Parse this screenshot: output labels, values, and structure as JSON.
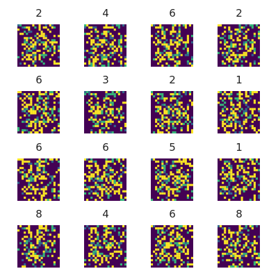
{
  "chart_data": {
    "type": "heatmap",
    "grid": {
      "rows": 4,
      "cols": 4
    },
    "colormap": {
      "low": "#440154",
      "mid_low": "#31688e",
      "mid_high": "#35b779",
      "high": "#fde725"
    },
    "pixel_grid_size": 20,
    "panels": [
      {
        "title": "2"
      },
      {
        "title": "4"
      },
      {
        "title": "6"
      },
      {
        "title": "2"
      },
      {
        "title": "6"
      },
      {
        "title": "3"
      },
      {
        "title": "2"
      },
      {
        "title": "1"
      },
      {
        "title": "6"
      },
      {
        "title": "6"
      },
      {
        "title": "5"
      },
      {
        "title": "1"
      },
      {
        "title": "8"
      },
      {
        "title": "4"
      },
      {
        "title": "6"
      },
      {
        "title": "8"
      }
    ]
  }
}
